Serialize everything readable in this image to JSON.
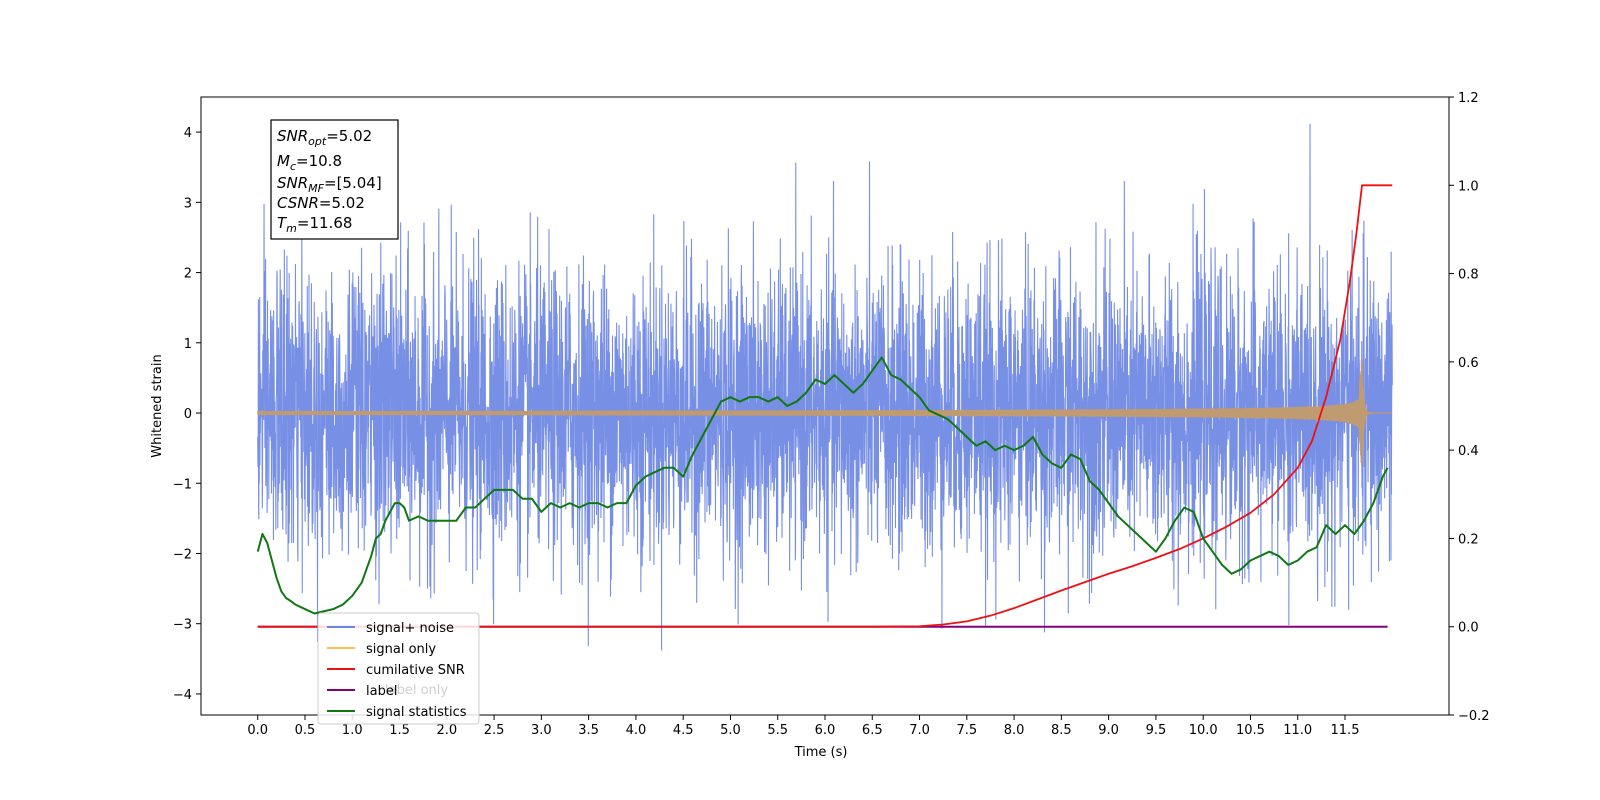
{
  "chart_data": {
    "type": "line",
    "xlabel": "Time (s)",
    "ylabel_left": "Whitened strain",
    "ylabel_right": "",
    "xlim": [
      -0.6,
      12.6
    ],
    "ylim_left": [
      -4.3,
      4.5
    ],
    "ylim_right": [
      -0.2,
      1.2
    ],
    "x_ticks": [
      0.0,
      0.5,
      1.0,
      1.5,
      2.0,
      2.5,
      3.0,
      3.5,
      4.0,
      4.5,
      5.0,
      5.5,
      6.0,
      6.5,
      7.0,
      7.5,
      8.0,
      8.5,
      9.0,
      9.5,
      10.0,
      10.5,
      11.0,
      11.5
    ],
    "x_tick_labels": [
      "0.0",
      "0.5",
      "1.0",
      "1.5",
      "2.0",
      "2.5",
      "3.0",
      "3.5",
      "4.0",
      "4.5",
      "5.0",
      "5.5",
      "6.0",
      "6.5",
      "7.0",
      "7.5",
      "8.0",
      "8.5",
      "9.0",
      "9.5",
      "10.0",
      "10.5",
      "11.0",
      "11.5"
    ],
    "y_ticks_left": [
      4,
      3,
      2,
      1,
      0,
      -1,
      -2,
      -3,
      -4
    ],
    "y_tick_labels_left": [
      "4",
      "3",
      "2",
      "1",
      "0",
      "−1",
      "−2",
      "−3",
      "−4"
    ],
    "y_ticks_right": [
      1.2,
      1.0,
      0.8,
      0.6,
      0.4,
      0.2,
      0.0,
      -0.2
    ],
    "y_tick_labels_right": [
      "1.2",
      "1.0",
      "0.8",
      "0.6",
      "0.4",
      "0.2",
      "0.0",
      "−0.2"
    ],
    "grid": false,
    "legend_position": "lower-left",
    "legend": [
      {
        "label": "signal+ noise",
        "color": "#6b86e3"
      },
      {
        "label": "signal only",
        "color": "#ffc04d"
      },
      {
        "label": "cumilative SNR",
        "color": "#ee1111"
      },
      {
        "label": "label",
        "color": "#800080"
      },
      {
        "label": "signal statistics",
        "color": "#117711"
      }
    ],
    "legend_hidden_text": "label only",
    "annotation_lines": [
      {
        "base": "SNR",
        "sub": "opt",
        "value": "=5.02"
      },
      {
        "base": "M",
        "sub": "c",
        "value": "=10.8"
      },
      {
        "base": "SNR",
        "sub": "MF",
        "value": "=[5.04]"
      },
      {
        "base": "CSNR",
        "sub": "",
        "value": "=5.02"
      },
      {
        "base": "T",
        "sub": "m",
        "value": "=11.68"
      }
    ],
    "series": [
      {
        "name": "signal+ noise",
        "axis": "left",
        "color": "#6b86e3",
        "x_start": 0.0,
        "x_end": 12.0,
        "mean": 0.0,
        "std": 1.0,
        "min": -3.86,
        "max": 4.12
      },
      {
        "name": "signal only",
        "axis": "left",
        "color": "#c09a70",
        "x_start": 0.0,
        "x_end": 12.0,
        "merger_time": 11.68,
        "peak_amplitude": 0.9
      },
      {
        "name": "cumilative SNR",
        "axis": "right",
        "color": "#ee1111",
        "x": [
          0.0,
          6.5,
          7.0,
          7.25,
          7.5,
          7.75,
          8.0,
          8.25,
          8.5,
          8.75,
          9.0,
          9.25,
          9.5,
          9.75,
          10.0,
          10.25,
          10.5,
          10.75,
          11.0,
          11.15,
          11.3,
          11.45,
          11.55,
          11.62,
          11.68,
          12.0
        ],
        "y": [
          0.0,
          0.0,
          0.001,
          0.005,
          0.012,
          0.025,
          0.042,
          0.062,
          0.082,
          0.101,
          0.12,
          0.137,
          0.156,
          0.176,
          0.2,
          0.227,
          0.258,
          0.3,
          0.36,
          0.42,
          0.52,
          0.65,
          0.78,
          0.89,
          1.0,
          1.0
        ]
      },
      {
        "name": "label",
        "axis": "right",
        "color": "#800080",
        "x": [
          0.0,
          11.95
        ],
        "y": [
          0.0,
          0.0
        ]
      },
      {
        "name": "signal statistics",
        "axis": "right",
        "color": "#117711",
        "x": [
          0.0,
          0.05,
          0.1,
          0.15,
          0.2,
          0.25,
          0.3,
          0.35,
          0.4,
          0.5,
          0.6,
          0.7,
          0.8,
          0.9,
          1.0,
          1.1,
          1.15,
          1.2,
          1.25,
          1.3,
          1.35,
          1.4,
          1.45,
          1.5,
          1.55,
          1.6,
          1.7,
          1.8,
          1.9,
          2.0,
          2.1,
          2.2,
          2.3,
          2.4,
          2.5,
          2.6,
          2.7,
          2.8,
          2.9,
          3.0,
          3.1,
          3.2,
          3.3,
          3.4,
          3.5,
          3.6,
          3.7,
          3.8,
          3.9,
          4.0,
          4.1,
          4.2,
          4.3,
          4.4,
          4.5,
          4.6,
          4.7,
          4.8,
          4.9,
          5.0,
          5.1,
          5.2,
          5.3,
          5.4,
          5.5,
          5.6,
          5.7,
          5.8,
          5.9,
          6.0,
          6.1,
          6.2,
          6.3,
          6.4,
          6.5,
          6.6,
          6.7,
          6.8,
          6.9,
          7.0,
          7.1,
          7.2,
          7.3,
          7.4,
          7.5,
          7.6,
          7.7,
          7.8,
          7.9,
          8.0,
          8.1,
          8.2,
          8.3,
          8.4,
          8.5,
          8.6,
          8.7,
          8.8,
          8.9,
          9.0,
          9.1,
          9.2,
          9.3,
          9.4,
          9.5,
          9.6,
          9.7,
          9.8,
          9.9,
          10.0,
          10.1,
          10.2,
          10.3,
          10.4,
          10.5,
          10.6,
          10.7,
          10.8,
          10.9,
          11.0,
          11.1,
          11.2,
          11.3,
          11.4,
          11.5,
          11.6,
          11.7,
          11.8,
          11.9,
          11.95
        ],
        "y": [
          0.17,
          0.21,
          0.19,
          0.15,
          0.11,
          0.08,
          0.065,
          0.058,
          0.05,
          0.04,
          0.03,
          0.035,
          0.04,
          0.05,
          0.07,
          0.1,
          0.13,
          0.16,
          0.2,
          0.21,
          0.24,
          0.26,
          0.28,
          0.28,
          0.27,
          0.24,
          0.25,
          0.24,
          0.24,
          0.24,
          0.24,
          0.27,
          0.27,
          0.29,
          0.31,
          0.31,
          0.31,
          0.29,
          0.29,
          0.26,
          0.28,
          0.27,
          0.28,
          0.27,
          0.28,
          0.28,
          0.27,
          0.28,
          0.28,
          0.32,
          0.34,
          0.35,
          0.36,
          0.36,
          0.34,
          0.39,
          0.43,
          0.47,
          0.51,
          0.52,
          0.51,
          0.52,
          0.52,
          0.51,
          0.52,
          0.5,
          0.51,
          0.53,
          0.56,
          0.55,
          0.57,
          0.55,
          0.53,
          0.55,
          0.58,
          0.61,
          0.57,
          0.56,
          0.54,
          0.52,
          0.49,
          0.48,
          0.47,
          0.45,
          0.43,
          0.41,
          0.42,
          0.4,
          0.41,
          0.4,
          0.41,
          0.43,
          0.39,
          0.37,
          0.36,
          0.39,
          0.38,
          0.33,
          0.31,
          0.28,
          0.25,
          0.23,
          0.21,
          0.19,
          0.17,
          0.2,
          0.24,
          0.27,
          0.26,
          0.2,
          0.17,
          0.14,
          0.12,
          0.13,
          0.15,
          0.16,
          0.17,
          0.16,
          0.14,
          0.15,
          0.17,
          0.18,
          0.23,
          0.21,
          0.23,
          0.21,
          0.24,
          0.28,
          0.34,
          0.36
        ]
      }
    ]
  }
}
